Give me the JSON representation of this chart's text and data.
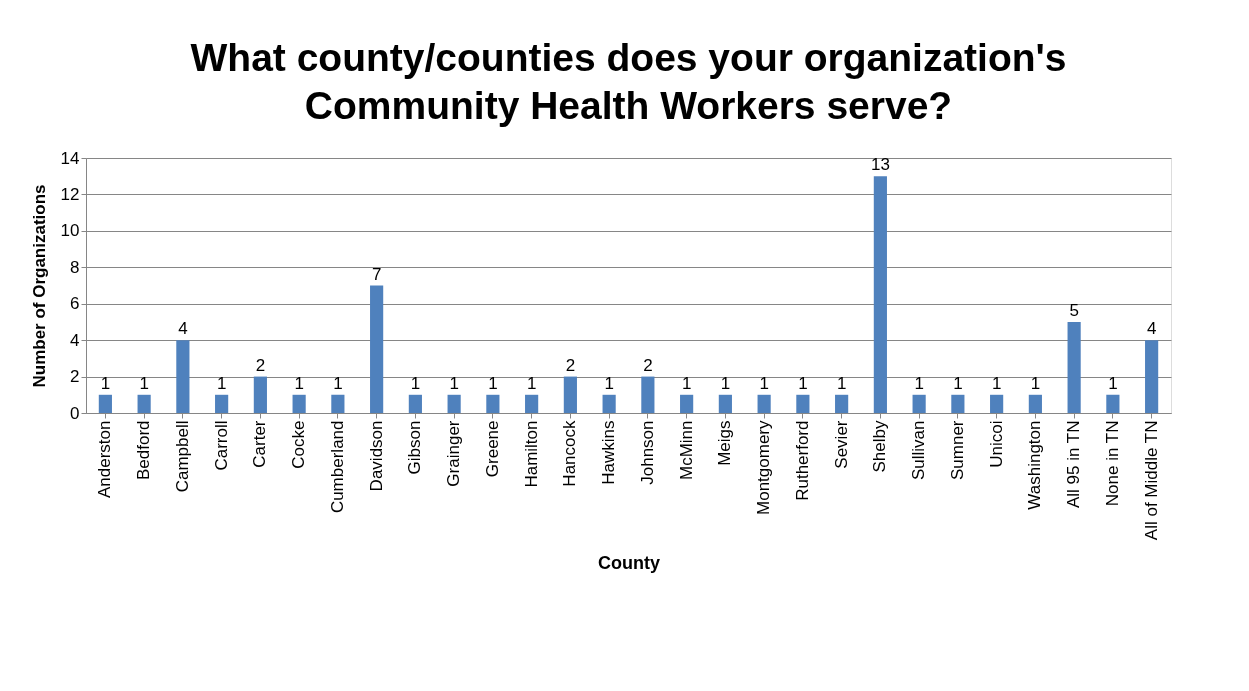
{
  "chart_data": {
    "type": "bar",
    "title": "What county/counties does your organization's Community Health Workers serve?",
    "xlabel": "County",
    "ylabel": "Number of Organizations",
    "categories": [
      "Anderston",
      "Bedford",
      "Campbell",
      "Carroll",
      "Carter",
      "Cocke",
      "Cumberland",
      "Davidson",
      "Gibson",
      "Grainger",
      "Greene",
      "Hamilton",
      "Hancock",
      "Hawkins",
      "Johnson",
      "McMinn",
      "Meigs",
      "Montgomery",
      "Rutherford",
      "Sevier",
      "Shelby",
      "Sullivan",
      "Sumner",
      "Unicoi",
      "Washington",
      "All 95 in TN",
      "None in TN",
      "All of Middle TN"
    ],
    "values": [
      1,
      1,
      4,
      1,
      2,
      1,
      1,
      7,
      1,
      1,
      1,
      1,
      2,
      1,
      2,
      1,
      1,
      1,
      1,
      1,
      13,
      1,
      1,
      1,
      1,
      5,
      1,
      4
    ],
    "color": "#4f81bd",
    "ylim": [
      0,
      14
    ],
    "yticks": [
      0,
      2,
      4,
      6,
      8,
      10,
      12,
      14
    ],
    "grid": "y",
    "data_labels": true
  }
}
